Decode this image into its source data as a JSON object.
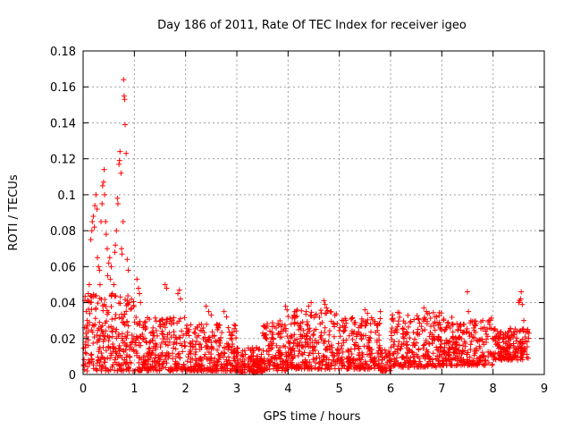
{
  "chart_data": {
    "type": "scatter",
    "title": "Day 186 of 2011, Rate Of TEC Index for receiver igeo",
    "xlabel": "GPS time / hours",
    "ylabel": "ROTI / TECUs",
    "xlim": [
      0,
      9
    ],
    "ylim": [
      0,
      0.18
    ],
    "xticks": [
      "0",
      "1",
      "2",
      "3",
      "4",
      "5",
      "6",
      "7",
      "8",
      "9"
    ],
    "yticks": [
      "0",
      "0.02",
      "0.04",
      "0.06",
      "0.08",
      "0.1",
      "0.12",
      "0.14",
      "0.16",
      "0.18"
    ],
    "grid": true,
    "marker": "+",
    "color": "#ff0000",
    "series": [
      {
        "name": "ROTI",
        "points": [
          [
            0.06,
            0.035
          ],
          [
            0.08,
            0.03
          ],
          [
            0.1,
            0.045
          ],
          [
            0.12,
            0.05
          ],
          [
            0.14,
            0.04
          ],
          [
            0.15,
            0.075
          ],
          [
            0.17,
            0.08
          ],
          [
            0.18,
            0.085
          ],
          [
            0.2,
            0.088
          ],
          [
            0.22,
            0.082
          ],
          [
            0.23,
            0.094
          ],
          [
            0.25,
            0.1
          ],
          [
            0.27,
            0.092
          ],
          [
            0.28,
            0.065
          ],
          [
            0.3,
            0.06
          ],
          [
            0.32,
            0.058
          ],
          [
            0.33,
            0.05
          ],
          [
            0.35,
            0.085
          ],
          [
            0.37,
            0.095
          ],
          [
            0.38,
            0.105
          ],
          [
            0.4,
            0.107
          ],
          [
            0.41,
            0.114
          ],
          [
            0.42,
            0.1
          ],
          [
            0.44,
            0.085
          ],
          [
            0.45,
            0.078
          ],
          [
            0.47,
            0.07
          ],
          [
            0.48,
            0.055
          ],
          [
            0.5,
            0.062
          ],
          [
            0.52,
            0.065
          ],
          [
            0.53,
            0.053
          ],
          [
            0.55,
            0.06
          ],
          [
            0.57,
            0.045
          ],
          [
            0.6,
            0.05
          ],
          [
            0.62,
            0.068
          ],
          [
            0.63,
            0.072
          ],
          [
            0.65,
            0.08
          ],
          [
            0.67,
            0.098
          ],
          [
            0.68,
            0.095
          ],
          [
            0.7,
            0.117
          ],
          [
            0.71,
            0.119
          ],
          [
            0.72,
            0.124
          ],
          [
            0.74,
            0.112
          ],
          [
            0.75,
            0.07
          ],
          [
            0.76,
            0.067
          ],
          [
            0.78,
            0.085
          ],
          [
            0.79,
            0.164
          ],
          [
            0.8,
            0.155
          ],
          [
            0.81,
            0.153
          ],
          [
            0.82,
            0.139
          ],
          [
            0.84,
            0.123
          ],
          [
            0.86,
            0.064
          ],
          [
            0.88,
            0.058
          ],
          [
            0.9,
            0.04
          ],
          [
            1.05,
            0.053
          ],
          [
            1.08,
            0.048
          ],
          [
            1.1,
            0.045
          ],
          [
            1.12,
            0.04
          ],
          [
            1.6,
            0.05
          ],
          [
            1.63,
            0.048
          ],
          [
            1.85,
            0.045
          ],
          [
            1.88,
            0.047
          ],
          [
            1.9,
            0.042
          ],
          [
            2.4,
            0.038
          ],
          [
            2.45,
            0.035
          ],
          [
            2.5,
            0.033
          ],
          [
            2.75,
            0.035
          ],
          [
            2.8,
            0.032
          ],
          [
            3.95,
            0.038
          ],
          [
            3.98,
            0.036
          ],
          [
            4.4,
            0.038
          ],
          [
            4.45,
            0.04
          ],
          [
            4.7,
            0.041
          ],
          [
            4.72,
            0.039
          ],
          [
            4.75,
            0.037
          ],
          [
            5.5,
            0.036
          ],
          [
            5.55,
            0.034
          ],
          [
            5.8,
            0.035
          ],
          [
            6.65,
            0.037
          ],
          [
            6.7,
            0.035
          ],
          [
            6.9,
            0.032
          ],
          [
            7.5,
            0.046
          ],
          [
            7.52,
            0.035
          ],
          [
            7.8,
            0.03
          ],
          [
            8.5,
            0.04
          ],
          [
            8.52,
            0.041
          ],
          [
            8.54,
            0.042
          ],
          [
            8.55,
            0.046
          ],
          [
            8.57,
            0.039
          ],
          [
            8.6,
            0.03
          ]
        ],
        "bands": [
          {
            "x_start": 0.0,
            "x_end": 1.0,
            "y_min": 0.002,
            "y_max": 0.045
          },
          {
            "x_start": 1.0,
            "x_end": 2.0,
            "y_min": 0.002,
            "y_max": 0.032
          },
          {
            "x_start": 2.0,
            "x_end": 3.0,
            "y_min": 0.002,
            "y_max": 0.028
          },
          {
            "x_start": 3.0,
            "x_end": 3.5,
            "y_min": 0.001,
            "y_max": 0.015
          },
          {
            "x_start": 3.5,
            "x_end": 4.0,
            "y_min": 0.002,
            "y_max": 0.03
          },
          {
            "x_start": 4.0,
            "x_end": 5.0,
            "y_min": 0.003,
            "y_max": 0.036
          },
          {
            "x_start": 5.0,
            "x_end": 5.8,
            "y_min": 0.003,
            "y_max": 0.032
          },
          {
            "x_start": 5.8,
            "x_end": 6.0,
            "y_min": 0.002,
            "y_max": 0.015
          },
          {
            "x_start": 6.0,
            "x_end": 7.0,
            "y_min": 0.004,
            "y_max": 0.035
          },
          {
            "x_start": 7.0,
            "x_end": 8.0,
            "y_min": 0.005,
            "y_max": 0.032
          },
          {
            "x_start": 8.0,
            "x_end": 8.7,
            "y_min": 0.008,
            "y_max": 0.026
          }
        ]
      }
    ]
  }
}
